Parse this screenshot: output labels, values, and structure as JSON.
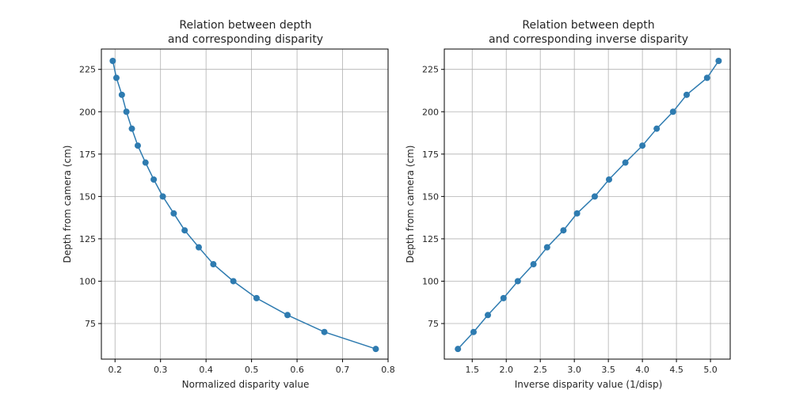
{
  "chart_data": [
    {
      "type": "line",
      "title_lines": [
        "Relation between depth",
        "and corresponding disparity"
      ],
      "xlabel": "Normalized disparity value",
      "ylabel": "Depth from camera (cm)",
      "xlim": [
        0.17,
        0.8
      ],
      "ylim": [
        54,
        237
      ],
      "xticks": [
        0.2,
        0.3,
        0.4,
        0.5,
        0.6,
        0.7,
        0.8
      ],
      "xtick_labels": [
        "0.2",
        "0.3",
        "0.4",
        "0.5",
        "0.6",
        "0.7",
        "0.8"
      ],
      "yticks": [
        75,
        100,
        125,
        150,
        175,
        200,
        225
      ],
      "ytick_labels": [
        "75",
        "100",
        "125",
        "150",
        "175",
        "200",
        "225"
      ],
      "grid": true,
      "marker": "circle",
      "color": "#2e7bb0",
      "series": [
        {
          "x": [
            0.773,
            0.66,
            0.579,
            0.511,
            0.46,
            0.416,
            0.384,
            0.353,
            0.329,
            0.305,
            0.285,
            0.267,
            0.25,
            0.237,
            0.225,
            0.215,
            0.203,
            0.195
          ],
          "y": [
            60,
            70,
            80,
            90,
            100,
            110,
            120,
            130,
            140,
            150,
            160,
            170,
            180,
            190,
            200,
            210,
            220,
            230
          ]
        }
      ]
    },
    {
      "type": "line",
      "title_lines": [
        "Relation between depth",
        "and corresponding inverse disparity"
      ],
      "xlabel": "Inverse disparity value (1/disp)",
      "ylabel": "Depth from camera (cm)",
      "xlim": [
        1.09,
        5.29
      ],
      "ylim": [
        54,
        237
      ],
      "xticks": [
        1.5,
        2.0,
        2.5,
        3.0,
        3.5,
        4.0,
        4.5,
        5.0
      ],
      "xtick_labels": [
        "1.5",
        "2.0",
        "2.5",
        "3.0",
        "3.5",
        "4.0",
        "4.5",
        "5.0"
      ],
      "yticks": [
        75,
        100,
        125,
        150,
        175,
        200,
        225
      ],
      "ytick_labels": [
        "75",
        "100",
        "125",
        "150",
        "175",
        "200",
        "225"
      ],
      "grid": true,
      "marker": "circle",
      "color": "#2e7bb0",
      "series": [
        {
          "x": [
            1.29,
            1.52,
            1.73,
            1.96,
            2.17,
            2.4,
            2.6,
            2.84,
            3.04,
            3.3,
            3.51,
            3.75,
            4.0,
            4.21,
            4.45,
            4.65,
            4.95,
            5.12
          ],
          "y": [
            60,
            70,
            80,
            90,
            100,
            110,
            120,
            130,
            140,
            150,
            160,
            170,
            180,
            190,
            200,
            210,
            220,
            230
          ]
        }
      ]
    }
  ]
}
